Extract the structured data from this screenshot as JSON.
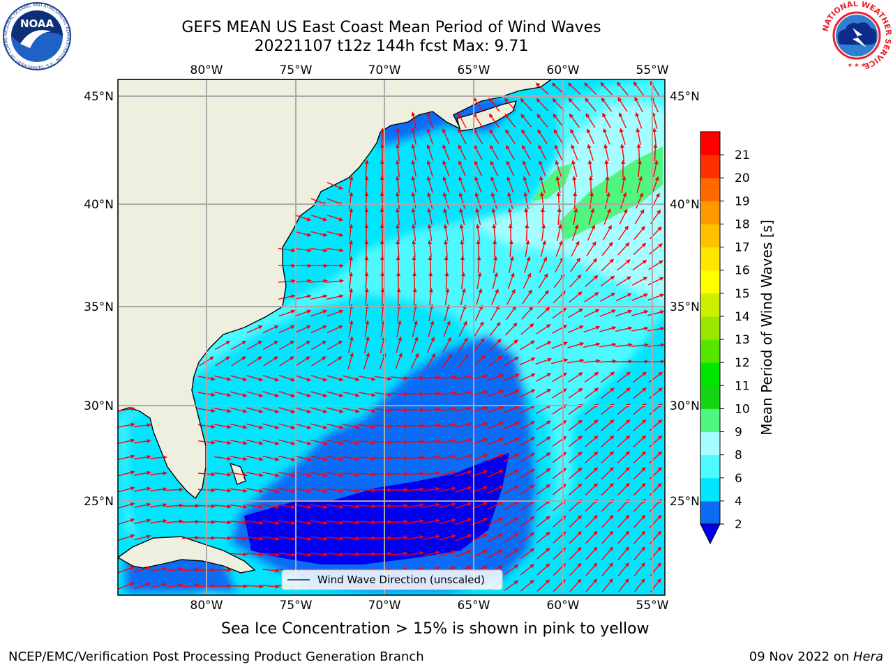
{
  "title": {
    "line1": "GEFS MEAN US East Coast Mean Period of Wind Waves",
    "line2": "20221107 t12z 144h fcst   Max: 9.71"
  },
  "map": {
    "lon_labels": [
      "80°W",
      "75°W",
      "70°W",
      "65°W",
      "60°W",
      "55°W"
    ],
    "lat_labels": [
      "45°N",
      "40°N",
      "35°N",
      "30°N",
      "25°N"
    ],
    "legend_label": "Wind Wave Direction (unscaled)",
    "land_color": "#efefdf",
    "arrow_color": "#ff0000"
  },
  "colorbar": {
    "label": "Mean Period of Wind Waves [s]",
    "ticks": [
      "2",
      "4",
      "6",
      "8",
      "9",
      "10",
      "11",
      "12",
      "13",
      "14",
      "15",
      "16",
      "17",
      "18",
      "19",
      "20",
      "21"
    ],
    "colors": [
      "#0a6cf5",
      "#00e6ff",
      "#4ef9ff",
      "#a5fdff",
      "#51f681",
      "#14d514",
      "#00e600",
      "#55e600",
      "#99e600",
      "#ccf000",
      "#ffff00",
      "#ffe600",
      "#ffc000",
      "#ff9900",
      "#ff6a00",
      "#ff3000",
      "#ff0000"
    ],
    "under_color": "#0000ee"
  },
  "notes": {
    "ice": "Sea Ice Concentration > 15% is shown in pink to yellow",
    "credit": "NCEP/EMC/Verification Post Processing Product Generation Branch",
    "date": "09 Nov 2022 on ",
    "machine": "Hera"
  },
  "logos": {
    "noaa": "NOAA",
    "noaa_ring": "NATIONAL OCEANIC AND ATMOSPHERIC ADMINISTRATION · U.S. DEPARTMENT OF COMMERCE",
    "nws_ring": "NATIONAL WEATHER SERVICE"
  }
}
